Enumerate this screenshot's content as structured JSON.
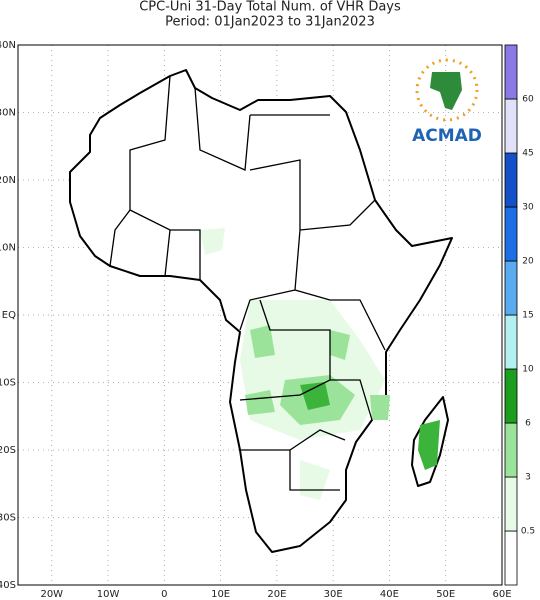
{
  "header": {
    "title": "CPC-Uni 31-Day Total Num. of VHR Days",
    "subtitle": "Period: 01Jan2023 to 31Jan2023"
  },
  "logo": {
    "text": "ACMAD"
  },
  "map": {
    "xlim": [
      -26,
      60
    ],
    "ylim": [
      -40,
      40
    ],
    "xticks": [
      {
        "value": -20,
        "label": "20W"
      },
      {
        "value": -10,
        "label": "10W"
      },
      0,
      {
        "value": 10,
        "label": "10E"
      },
      {
        "value": 20,
        "label": "20E"
      },
      {
        "value": 30,
        "label": "30E"
      },
      {
        "value": 40,
        "label": "40E"
      },
      {
        "value": 50,
        "label": "50E"
      },
      {
        "value": 60,
        "label": "60E"
      }
    ],
    "yticks": [
      {
        "value": 40,
        "label": "40N"
      },
      {
        "value": 30,
        "label": "30N"
      },
      {
        "value": 20,
        "label": "20N"
      },
      {
        "value": 10,
        "label": "10N"
      },
      {
        "value": 0,
        "label": "EQ"
      },
      {
        "value": -10,
        "label": "10S"
      },
      {
        "value": -20,
        "label": "20S"
      },
      {
        "value": -30,
        "label": "30S"
      },
      {
        "value": -40,
        "label": "40S"
      }
    ],
    "grid": true
  },
  "colorbar": {
    "levels": [
      0.5,
      3,
      6,
      10,
      15,
      20,
      30,
      45,
      60
    ],
    "colors": [
      "#ffffff",
      "#e6fae6",
      "#9be39b",
      "#1e9e1e",
      "#b4f0f0",
      "#5aaaf0",
      "#1e6ee6",
      "#1450c8",
      "#e1e1fa",
      "#8c78e6"
    ]
  }
}
